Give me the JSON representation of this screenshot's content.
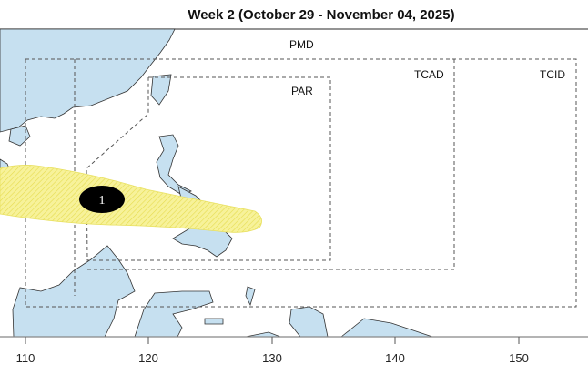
{
  "title": "Week 2 (October 29 - November 04, 2025)",
  "regions": {
    "pmd": "PMD",
    "par": "PAR",
    "tcad": "TCAD",
    "tcid": "TCID"
  },
  "forecast_area": {
    "label": "1",
    "fill_color": "#f5f08a",
    "marker_color": "#000000"
  },
  "land_color": "#c6e0f0",
  "x_axis": {
    "ticks": [
      "110",
      "120",
      "130",
      "140",
      "150"
    ]
  }
}
